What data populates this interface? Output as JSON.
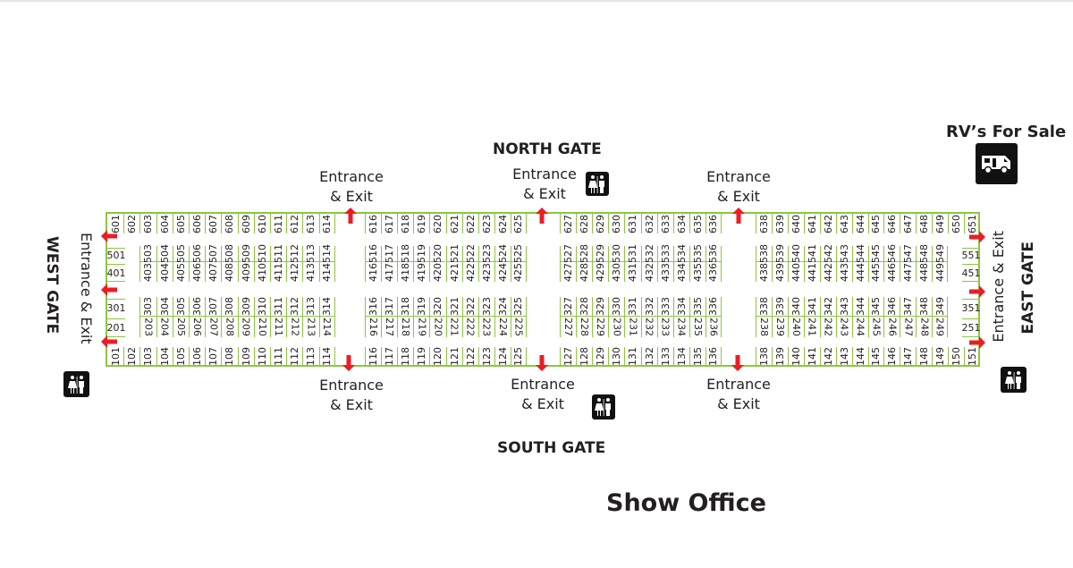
{
  "colors": {
    "lot_lines": "#8dc63f",
    "arrows": "#ec1c24",
    "text": "#231f20",
    "icon_bg": "#111111"
  },
  "gates": {
    "north": {
      "name": "NORTH GATE",
      "entrances": [
        "Entrance\n& Exit",
        "Entrance\n& Exit",
        "Entrance\n& Exit"
      ]
    },
    "south": {
      "name": "SOUTH GATE",
      "entrances": [
        "Entrance\n& Exit",
        "Entrance\n& Exit",
        "Entrance\n& Exit"
      ]
    },
    "west": {
      "name": "WEST GATE",
      "entrance": "Entrance & Exit"
    },
    "east": {
      "name": "EAST GATE",
      "entrance": "Entrance & Exit"
    }
  },
  "rv_sale": {
    "label": "RV’s For Sale",
    "icon": "rv-icon"
  },
  "show_office": "Show Office",
  "restroom_icon": "restroom-icon",
  "arrow_icon": "arrow-icon",
  "lots": {
    "row6": [
      [
        "601",
        "602",
        "603",
        "604",
        "605",
        "606",
        "607",
        "608",
        "609",
        "610",
        "611",
        "612",
        "613",
        "614"
      ],
      [
        "616",
        "617",
        "618",
        "619",
        "620",
        "621",
        "622",
        "623",
        "624",
        "625"
      ],
      [
        "627",
        "628",
        "629",
        "630",
        "631",
        "632",
        "633",
        "634",
        "635",
        "636"
      ],
      [
        "638",
        "639",
        "640",
        "641",
        "642",
        "643",
        "644",
        "645",
        "646",
        "647",
        "648",
        "649",
        "650",
        "651"
      ]
    ],
    "row5": {
      "left": "501",
      "blocks": [
        [
          "503",
          "504",
          "505",
          "506",
          "507",
          "508",
          "509",
          "510",
          "511",
          "512",
          "513",
          "514"
        ],
        [
          "516",
          "517",
          "518",
          "519",
          "520",
          "521",
          "522",
          "523",
          "524",
          "525"
        ],
        [
          "527",
          "528",
          "529",
          "530",
          "531",
          "532",
          "533",
          "534",
          "535",
          "536"
        ],
        [
          "538",
          "539",
          "540",
          "541",
          "542",
          "543",
          "544",
          "545",
          "546",
          "547",
          "548",
          "549"
        ]
      ],
      "right": "551"
    },
    "row4": {
      "left": "401",
      "blocks": [
        [
          "403",
          "404",
          "405",
          "406",
          "407",
          "408",
          "409",
          "410",
          "411",
          "412",
          "413",
          "414"
        ],
        [
          "416",
          "417",
          "418",
          "419",
          "420",
          "421",
          "422",
          "423",
          "424",
          "425"
        ],
        [
          "427",
          "428",
          "429",
          "430",
          "431",
          "432",
          "433",
          "434",
          "435",
          "436"
        ],
        [
          "438",
          "439",
          "440",
          "441",
          "442",
          "443",
          "444",
          "445",
          "446",
          "447",
          "448",
          "449"
        ]
      ],
      "right": "451"
    },
    "row3": {
      "left": "301",
      "blocks": [
        [
          "303",
          "304",
          "305",
          "306",
          "307",
          "308",
          "309",
          "310",
          "311",
          "312",
          "313",
          "314"
        ],
        [
          "316",
          "317",
          "318",
          "319",
          "320",
          "321",
          "322",
          "323",
          "324",
          "325"
        ],
        [
          "327",
          "328",
          "329",
          "330",
          "331",
          "332",
          "333",
          "334",
          "335",
          "336"
        ],
        [
          "338",
          "339",
          "340",
          "341",
          "342",
          "343",
          "344",
          "345",
          "346",
          "347",
          "348",
          "349"
        ]
      ],
      "right": "351"
    },
    "row2": {
      "left": "201",
      "blocks": [
        [
          "203",
          "204",
          "205",
          "206",
          "207",
          "208",
          "209",
          "210",
          "211",
          "212",
          "213",
          "214"
        ],
        [
          "216",
          "217",
          "218",
          "219",
          "220",
          "221",
          "222",
          "223",
          "224",
          "225"
        ],
        [
          "227",
          "228",
          "229",
          "230",
          "231",
          "232",
          "233",
          "234",
          "235",
          "236"
        ],
        [
          "238",
          "239",
          "240",
          "241",
          "242",
          "243",
          "244",
          "245",
          "246",
          "247",
          "248",
          "249"
        ]
      ],
      "right": "251"
    },
    "row1": [
      [
        "101",
        "102",
        "103",
        "104",
        "105",
        "106",
        "107",
        "108",
        "109",
        "110",
        "111",
        "112",
        "113",
        "114"
      ],
      [
        "116",
        "117",
        "118",
        "119",
        "120",
        "121",
        "122",
        "123",
        "124",
        "125"
      ],
      [
        "127",
        "128",
        "129",
        "130",
        "131",
        "132",
        "133",
        "134",
        "135",
        "136"
      ],
      [
        "138",
        "139",
        "140",
        "141",
        "142",
        "143",
        "144",
        "145",
        "146",
        "147",
        "148",
        "149",
        "150",
        "151"
      ]
    ]
  }
}
